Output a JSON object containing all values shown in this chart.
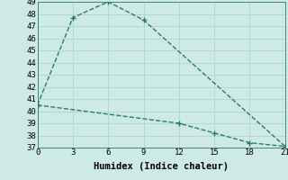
{
  "line1_x": [
    0,
    3,
    6,
    9,
    21
  ],
  "line1_y": [
    40.5,
    47.7,
    49.0,
    47.5,
    37.1
  ],
  "line1_markers": [
    false,
    true,
    true,
    true,
    false
  ],
  "line2_x": [
    0,
    12,
    15,
    18,
    21
  ],
  "line2_y": [
    40.5,
    39.0,
    38.2,
    37.4,
    37.1
  ],
  "line2_markers": [
    false,
    true,
    true,
    true,
    true
  ],
  "color": "#2a7a6e",
  "bg_color": "#ceeae5",
  "grid_color": "#a8d8d0",
  "xlabel": "Humidex (Indice chaleur)",
  "ylim": [
    37,
    49
  ],
  "xlim": [
    0,
    21
  ],
  "xticks": [
    0,
    3,
    6,
    9,
    12,
    15,
    18,
    21
  ],
  "yticks": [
    37,
    38,
    39,
    40,
    41,
    42,
    43,
    44,
    45,
    46,
    47,
    48,
    49
  ],
  "xlabel_fontsize": 7.5,
  "tick_fontsize": 6.5,
  "marker_size": 3,
  "line_width": 1.0
}
